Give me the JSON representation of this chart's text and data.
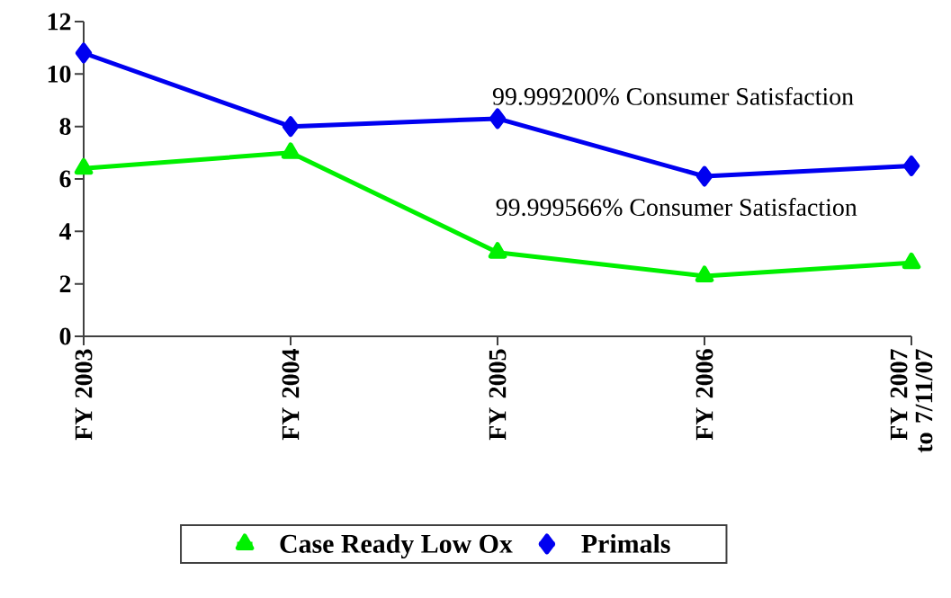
{
  "chart_data": {
    "type": "line",
    "categories": [
      "FY 2003",
      "FY 2004",
      "FY 2005",
      "FY 2006",
      "FY 2007 to 7/11/07"
    ],
    "series": [
      {
        "name": "Case Ready Low Ox",
        "color": "#00f000",
        "marker": "triangle",
        "values": [
          6.4,
          7.0,
          3.2,
          2.3,
          2.8
        ]
      },
      {
        "name": "Primals",
        "color": "#0000f0",
        "marker": "diamond",
        "values": [
          10.8,
          8.0,
          8.3,
          6.1,
          6.5
        ]
      }
    ],
    "ylim": [
      0,
      12
    ],
    "yticks": [
      0,
      2,
      4,
      6,
      8,
      10,
      12
    ],
    "grid": false,
    "legend": "bottom",
    "line_style": "solid",
    "annotations": [
      "99.999200% Consumer Satisfaction",
      "99.999566% Consumer Satisfaction"
    ]
  }
}
